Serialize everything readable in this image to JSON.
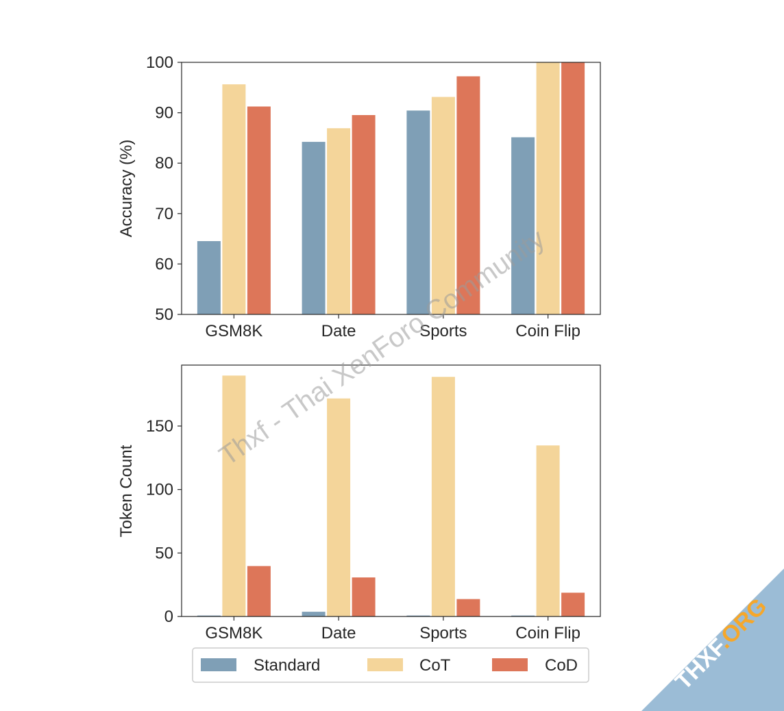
{
  "chart_data": [
    {
      "type": "bar",
      "categories": [
        "GSM8K",
        "Date",
        "Sports",
        "Coin Flip"
      ],
      "series": [
        {
          "name": "Standard",
          "values": [
            64.6,
            84.3,
            90.5,
            85.2
          ]
        },
        {
          "name": "CoT",
          "values": [
            95.7,
            87.0,
            93.2,
            100.0
          ]
        },
        {
          "name": "CoD",
          "values": [
            91.3,
            89.6,
            97.3,
            100.0
          ]
        }
      ],
      "xlabel": "",
      "ylabel": "Accuracy (%)",
      "ylim": [
        50,
        100
      ],
      "yticks": [
        50,
        60,
        70,
        80,
        90,
        100
      ],
      "grid": false
    },
    {
      "type": "bar",
      "categories": [
        "GSM8K",
        "Date",
        "Sports",
        "Coin Flip"
      ],
      "series": [
        {
          "name": "Standard",
          "values": [
            1,
            4,
            1,
            1
          ]
        },
        {
          "name": "CoT",
          "values": [
            190,
            172,
            189,
            135
          ]
        },
        {
          "name": "CoD",
          "values": [
            40,
            31,
            14,
            19
          ]
        }
      ],
      "xlabel": "",
      "ylabel": "Token Count",
      "ylim": [
        0,
        198
      ],
      "yticks": [
        0,
        50,
        100,
        150
      ],
      "grid": false
    }
  ],
  "legend": {
    "placement": "bottom-center",
    "entries": [
      "Standard",
      "CoT",
      "CoD"
    ]
  },
  "colors": {
    "Standard": "#7f9fb6",
    "CoT": "#f4d59a",
    "CoD": "#dd7659"
  },
  "watermark": {
    "text": "Thxf - Thai XenForo Community",
    "corner_text": "THXF",
    "corner_accent": ".ORG"
  }
}
